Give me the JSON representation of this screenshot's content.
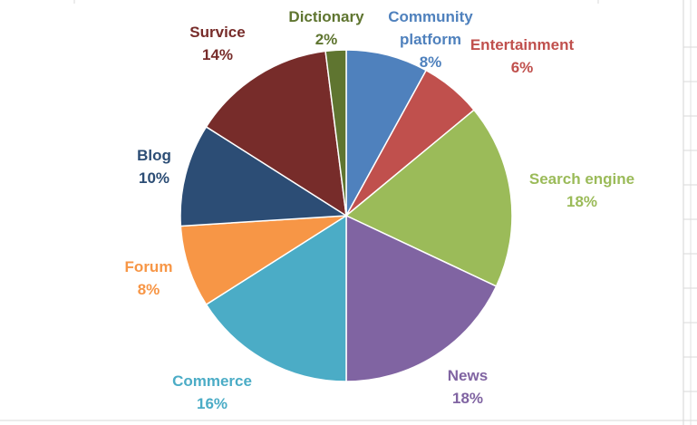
{
  "chart_data": {
    "type": "pie",
    "title": "",
    "categories": [
      "Community platform",
      "Entertainment",
      "Search engine",
      "News",
      "Commerce",
      "Forum",
      "Blog",
      "Survice",
      "Dictionary"
    ],
    "values": [
      8,
      6,
      18,
      18,
      16,
      8,
      10,
      14,
      2
    ],
    "value_labels": [
      "8%",
      "6%",
      "18%",
      "18%",
      "16%",
      "8%",
      "10%",
      "14%",
      "2%"
    ],
    "label_lines": [
      [
        "Community",
        "platform"
      ],
      [
        "Entertainment"
      ],
      [
        "Search engine"
      ],
      [
        "News"
      ],
      [
        "Commerce"
      ],
      [
        "Forum"
      ],
      [
        "Blog"
      ],
      [
        "Survice"
      ],
      [
        "Dictionary"
      ]
    ],
    "colors": [
      "#4f81bd",
      "#c0504d",
      "#9bbb59",
      "#8064a2",
      "#4bacc6",
      "#f79646",
      "#2c4d75",
      "#772c2a",
      "#5f7530"
    ],
    "legend": "none",
    "data_labels": "category and percent outside end, colored by slice"
  }
}
